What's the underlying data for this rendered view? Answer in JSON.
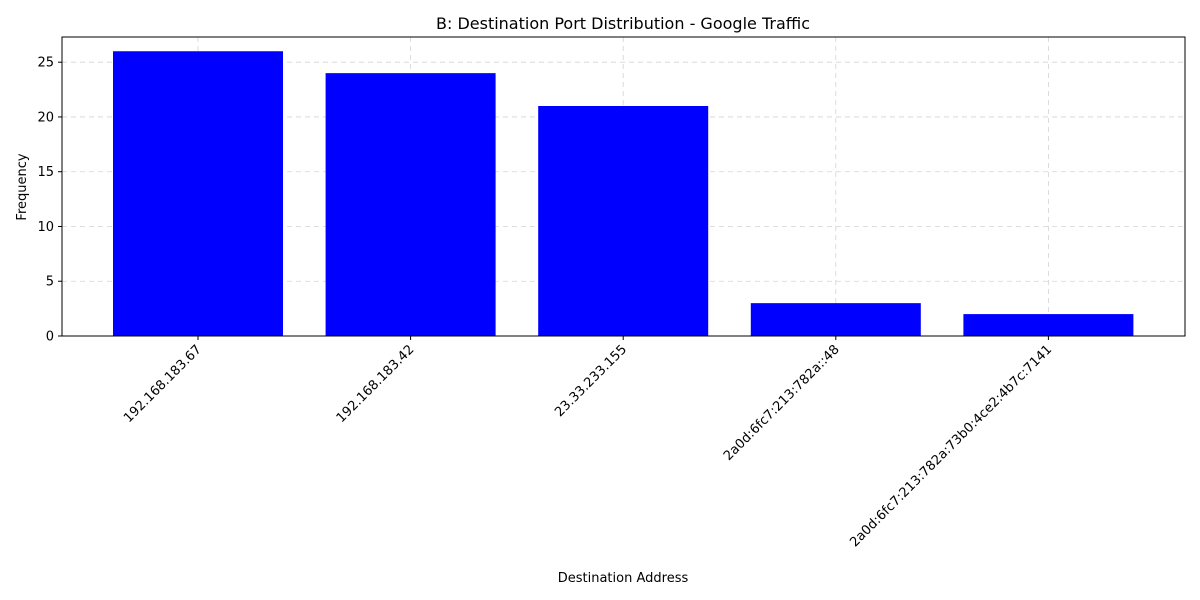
{
  "chart_data": {
    "type": "bar",
    "title": "B: Destination Port Distribution - Google Traffic",
    "xlabel": "Destination Address",
    "ylabel": "Frequency",
    "categories": [
      "192.168.183.67",
      "192.168.183.42",
      "23.33.233.155",
      "2a0d:6fc7:213:782a::48",
      "2a0d:6fc7:213:782a:73b0:4ce2:4b7c:7141"
    ],
    "values": [
      26,
      24,
      21,
      3,
      2
    ],
    "ylim": [
      0,
      27.3
    ],
    "yticks": [
      0,
      5,
      10,
      15,
      20,
      25
    ],
    "bar_color": "#0000ff",
    "grid": true,
    "x_tick_rotation": 45
  }
}
